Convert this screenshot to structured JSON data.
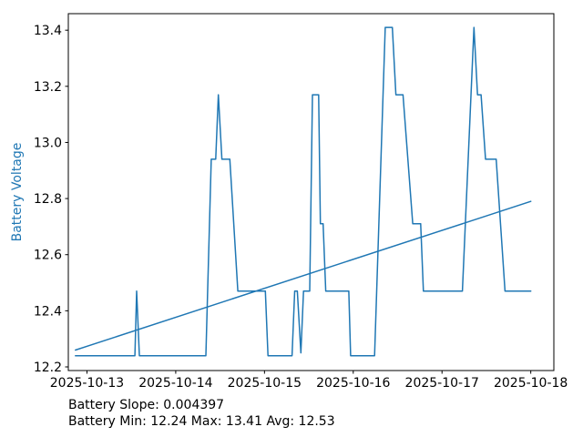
{
  "chart_data": {
    "type": "line",
    "title": "",
    "xlabel": "",
    "ylabel": "Battery Voltage",
    "x_unit": "days since 2025-10-13 00:00",
    "x_tick_days": [
      0,
      1,
      2,
      3,
      4,
      5
    ],
    "x_tick_labels": [
      "2025-10-13",
      "2025-10-14",
      "2025-10-15",
      "2025-10-16",
      "2025-10-17",
      "2025-10-18"
    ],
    "y_ticks": [
      12.2,
      12.4,
      12.6,
      12.8,
      13.0,
      13.2,
      13.4
    ],
    "xlim": [
      -0.21,
      5.26
    ],
    "ylim": [
      12.187,
      13.459
    ],
    "grid": false,
    "legend": "none",
    "axis_color": "#000000",
    "tick_label_color": "#000000",
    "ylabel_color": "#1f77b4",
    "series": [
      {
        "name": "battery-voltage",
        "color": "#1f77b4",
        "points": [
          [
            -0.13,
            12.24
          ],
          [
            0.54,
            12.24
          ],
          [
            0.56,
            12.47
          ],
          [
            0.59,
            12.24
          ],
          [
            1.34,
            12.24
          ],
          [
            1.4,
            12.94
          ],
          [
            1.45,
            12.94
          ],
          [
            1.48,
            13.17
          ],
          [
            1.52,
            12.94
          ],
          [
            1.61,
            12.94
          ],
          [
            1.7,
            12.47
          ],
          [
            2.01,
            12.47
          ],
          [
            2.04,
            12.24
          ],
          [
            2.31,
            12.24
          ],
          [
            2.34,
            12.47
          ],
          [
            2.37,
            12.47
          ],
          [
            2.41,
            12.25
          ],
          [
            2.44,
            12.47
          ],
          [
            2.51,
            12.47
          ],
          [
            2.54,
            13.17
          ],
          [
            2.61,
            13.17
          ],
          [
            2.63,
            12.71
          ],
          [
            2.66,
            12.71
          ],
          [
            2.69,
            12.47
          ],
          [
            2.95,
            12.47
          ],
          [
            2.97,
            12.24
          ],
          [
            3.24,
            12.24
          ],
          [
            3.36,
            13.41
          ],
          [
            3.44,
            13.41
          ],
          [
            3.48,
            13.17
          ],
          [
            3.56,
            13.17
          ],
          [
            3.67,
            12.71
          ],
          [
            3.76,
            12.71
          ],
          [
            3.79,
            12.47
          ],
          [
            4.23,
            12.47
          ],
          [
            4.36,
            13.41
          ],
          [
            4.4,
            13.17
          ],
          [
            4.44,
            13.17
          ],
          [
            4.49,
            12.94
          ],
          [
            4.61,
            12.94
          ],
          [
            4.71,
            12.47
          ],
          [
            5.0,
            12.47
          ]
        ]
      },
      {
        "name": "trend",
        "color": "#1f77b4",
        "points": [
          [
            -0.13,
            12.26
          ],
          [
            5.0,
            12.79
          ]
        ]
      }
    ],
    "annotations": [
      "Battery Slope: 0.004397",
      "Battery Min: 12.24 Max: 13.41 Avg: 12.53"
    ],
    "stats": {
      "slope": 0.004397,
      "min": 12.24,
      "max": 13.41,
      "avg": 12.53
    }
  }
}
